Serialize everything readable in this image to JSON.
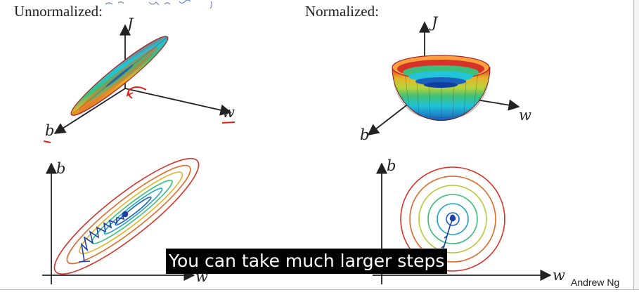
{
  "titles": {
    "left": "Unnormalized:",
    "right": "Normalized:"
  },
  "axes": {
    "j": "J",
    "w": "w",
    "b": "b"
  },
  "caption": "You can take much larger steps",
  "credit": "Andrew Ng",
  "colors": {
    "ink": "#222222",
    "annotation": "#1f3fa8",
    "pen_red": "#e0201a",
    "contours": [
      "#1b5fbf",
      "#21a4c8",
      "#3cbf7a",
      "#b8c93a",
      "#e8b32a",
      "#e06a2a",
      "#d7322a"
    ]
  }
}
